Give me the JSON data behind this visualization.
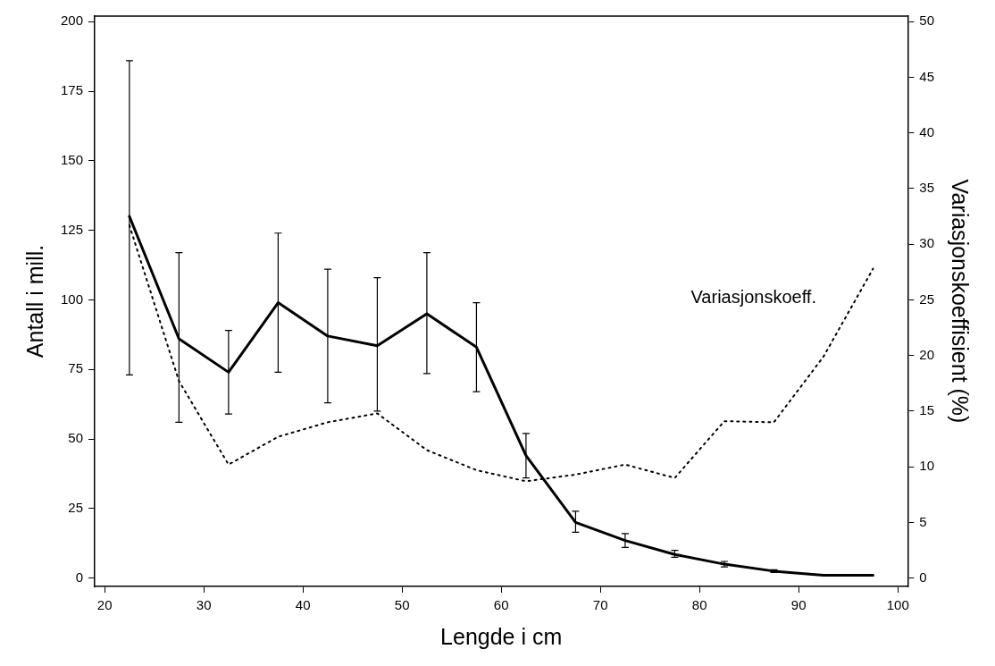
{
  "chart_data": {
    "type": "line",
    "xlabel": "Lengde i cm",
    "ylabel": "Antall i mill.",
    "y2label": "Variasjonskoeffisient (%)",
    "x": [
      22.5,
      27.5,
      32.5,
      37.5,
      42.5,
      47.5,
      52.5,
      57.5,
      62.5,
      67.5,
      72.5,
      77.5,
      82.5,
      87.5,
      92.5,
      97.5
    ],
    "series": [
      {
        "color": "#000000",
        "line_style": "solid",
        "values": [
          130,
          86,
          74,
          99,
          87,
          83.5,
          95,
          83,
          44,
          20,
          13.5,
          8.5,
          5,
          2.5,
          1,
          1
        ],
        "errors": [
          [
            73,
            186
          ],
          [
            56,
            117
          ],
          [
            59,
            89
          ],
          [
            74,
            124
          ],
          [
            63,
            111
          ],
          [
            60,
            108
          ],
          [
            73.5,
            117
          ],
          [
            67,
            99
          ],
          [
            36,
            52
          ],
          [
            16.5,
            24
          ],
          [
            11,
            16
          ],
          [
            7.5,
            10
          ],
          [
            4,
            6
          ],
          [
            2,
            3
          ],
          null,
          null
        ]
      },
      {
        "name": "Variasjonskoeff.",
        "color": "#000000",
        "line_style": "dotted",
        "axis": "y2",
        "values": [
          31.7,
          17.7,
          10.2,
          12.7,
          14,
          14.8,
          11.5,
          9.7,
          8.7,
          9.3,
          10.2,
          9,
          14.1,
          14,
          19.9,
          27.8
        ]
      }
    ],
    "xlim": [
      19,
      101
    ],
    "xticks": [
      20,
      30,
      40,
      50,
      60,
      70,
      80,
      90,
      100
    ],
    "ylim": [
      -3,
      202
    ],
    "yticks": [
      0,
      25,
      50,
      75,
      100,
      125,
      150,
      175,
      200
    ],
    "y2lim": [
      -0.75,
      50.5
    ],
    "y2ticks": [
      0,
      5,
      10,
      15,
      20,
      25,
      30,
      35,
      40,
      45,
      50
    ],
    "grid": false,
    "legend": false,
    "marker": "none"
  }
}
